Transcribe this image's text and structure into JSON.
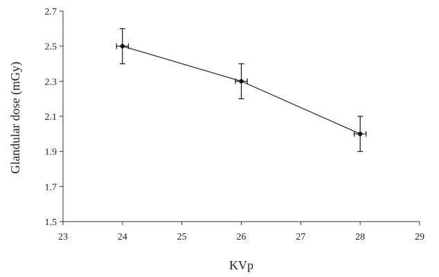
{
  "chart_data": {
    "type": "line",
    "xlabel": "KVp",
    "ylabel": "Glandular dose (mGy)",
    "x_ticks": [
      "23",
      "24",
      "25",
      "26",
      "27",
      "28",
      "29"
    ],
    "y_ticks": [
      "1.5",
      "1.7",
      "1.9",
      "2.1",
      "2.3",
      "2.5",
      "2.7"
    ],
    "x_tick_values": [
      23,
      24,
      25,
      26,
      27,
      28,
      29
    ],
    "y_tick_values": [
      1.5,
      1.7,
      1.9,
      2.1,
      2.3,
      2.5,
      2.7
    ],
    "xlim": [
      23,
      29
    ],
    "ylim": [
      1.5,
      2.7
    ],
    "grid": false,
    "series": [
      {
        "x": [
          24,
          26,
          28
        ],
        "y": [
          2.5,
          2.3,
          2.0
        ],
        "y_err": [
          0.1,
          0.1,
          0.1
        ],
        "x_err": [
          0.1,
          0.1,
          0.1
        ]
      }
    ],
    "colors": {
      "line": "#333333",
      "marker": "#111111",
      "axis": "#333333"
    }
  }
}
